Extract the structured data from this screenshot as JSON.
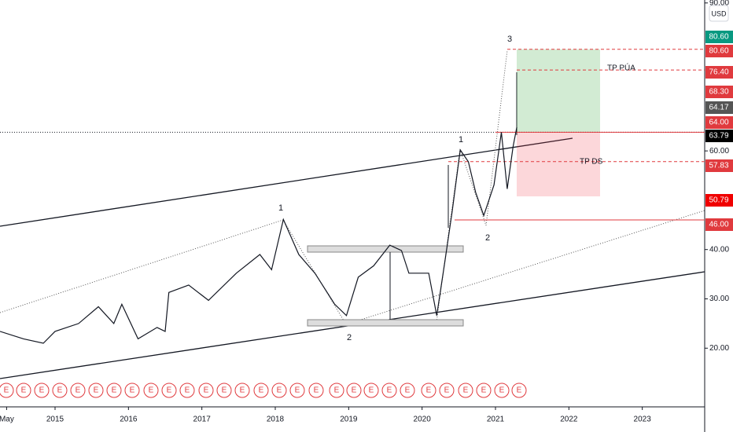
{
  "chart_data": {
    "type": "line",
    "currency": "USD",
    "x": [
      2014.25,
      2014.57,
      2014.84,
      2015.0,
      2015.32,
      2015.59,
      2015.8,
      2015.91,
      2016.13,
      2016.39,
      2016.5,
      2016.55,
      2016.82,
      2017.09,
      2017.47,
      2017.79,
      2017.95,
      2018.11,
      2018.32,
      2018.54,
      2018.81,
      2018.97,
      2019.13,
      2019.34,
      2019.56,
      2019.72,
      2019.82,
      2020.09,
      2020.2,
      2020.31,
      2020.41,
      2020.52,
      2020.63,
      2020.73,
      2020.84,
      2020.98,
      2021.08,
      2021.16,
      2021.24,
      2021.29
    ],
    "values": [
      23.4,
      21.9,
      21,
      23.4,
      25,
      28.4,
      25,
      28.9,
      21.9,
      24.2,
      23.4,
      31.3,
      32.8,
      29.7,
      35.2,
      39,
      35.9,
      46.1,
      39,
      35.2,
      28.9,
      26.6,
      34.4,
      36.7,
      40.9,
      39.8,
      35.2,
      35.2,
      26.6,
      37.5,
      47.7,
      60.2,
      57.8,
      51.6,
      46.9,
      53.1,
      63.8,
      52.3,
      60.9,
      64.8
    ],
    "color": "#131722",
    "xlim": [
      2014.25,
      2023.85
    ],
    "ylim": [
      8.1,
      90.6
    ],
    "xticks": [
      {
        "value": 2014.34,
        "label": "May"
      },
      2015,
      2016,
      2017,
      2018,
      2019,
      2020,
      2021,
      2022,
      2023
    ],
    "yticks": [
      {
        "value": 20,
        "label": "20.00"
      },
      {
        "value": 30,
        "label": "30.00"
      },
      {
        "value": 40,
        "label": "40.00"
      },
      {
        "value": 60,
        "label": "60.00"
      },
      {
        "value": 90,
        "label": "90.00"
      }
    ],
    "price_tags": {
      "values": [
        80.6,
        80.6,
        76.4,
        68.3,
        64.17,
        64,
        63.79,
        57.83,
        50.79,
        46
      ],
      "value_labels": [
        "80.60",
        "80.60",
        "76.40",
        "68.30",
        "64.17",
        "64.00",
        "63.79",
        "57.83",
        "50.79",
        "46.00"
      ],
      "colors": [
        "#089981",
        "#e03a3e",
        "#e03a3e",
        "#e03a3e",
        "#555555",
        "#e03a3e",
        "#000000",
        "#e03a3e",
        "#f00000",
        "#e03a3e"
      ]
    },
    "annotations": {
      "wave_1a": "1",
      "wave_2a": "2",
      "wave_1b": "1",
      "wave_2b": "2",
      "wave_3": "3",
      "tp_pua": "TP PÚA",
      "tp_ds": "TP DS"
    },
    "earnings_label": "E"
  }
}
